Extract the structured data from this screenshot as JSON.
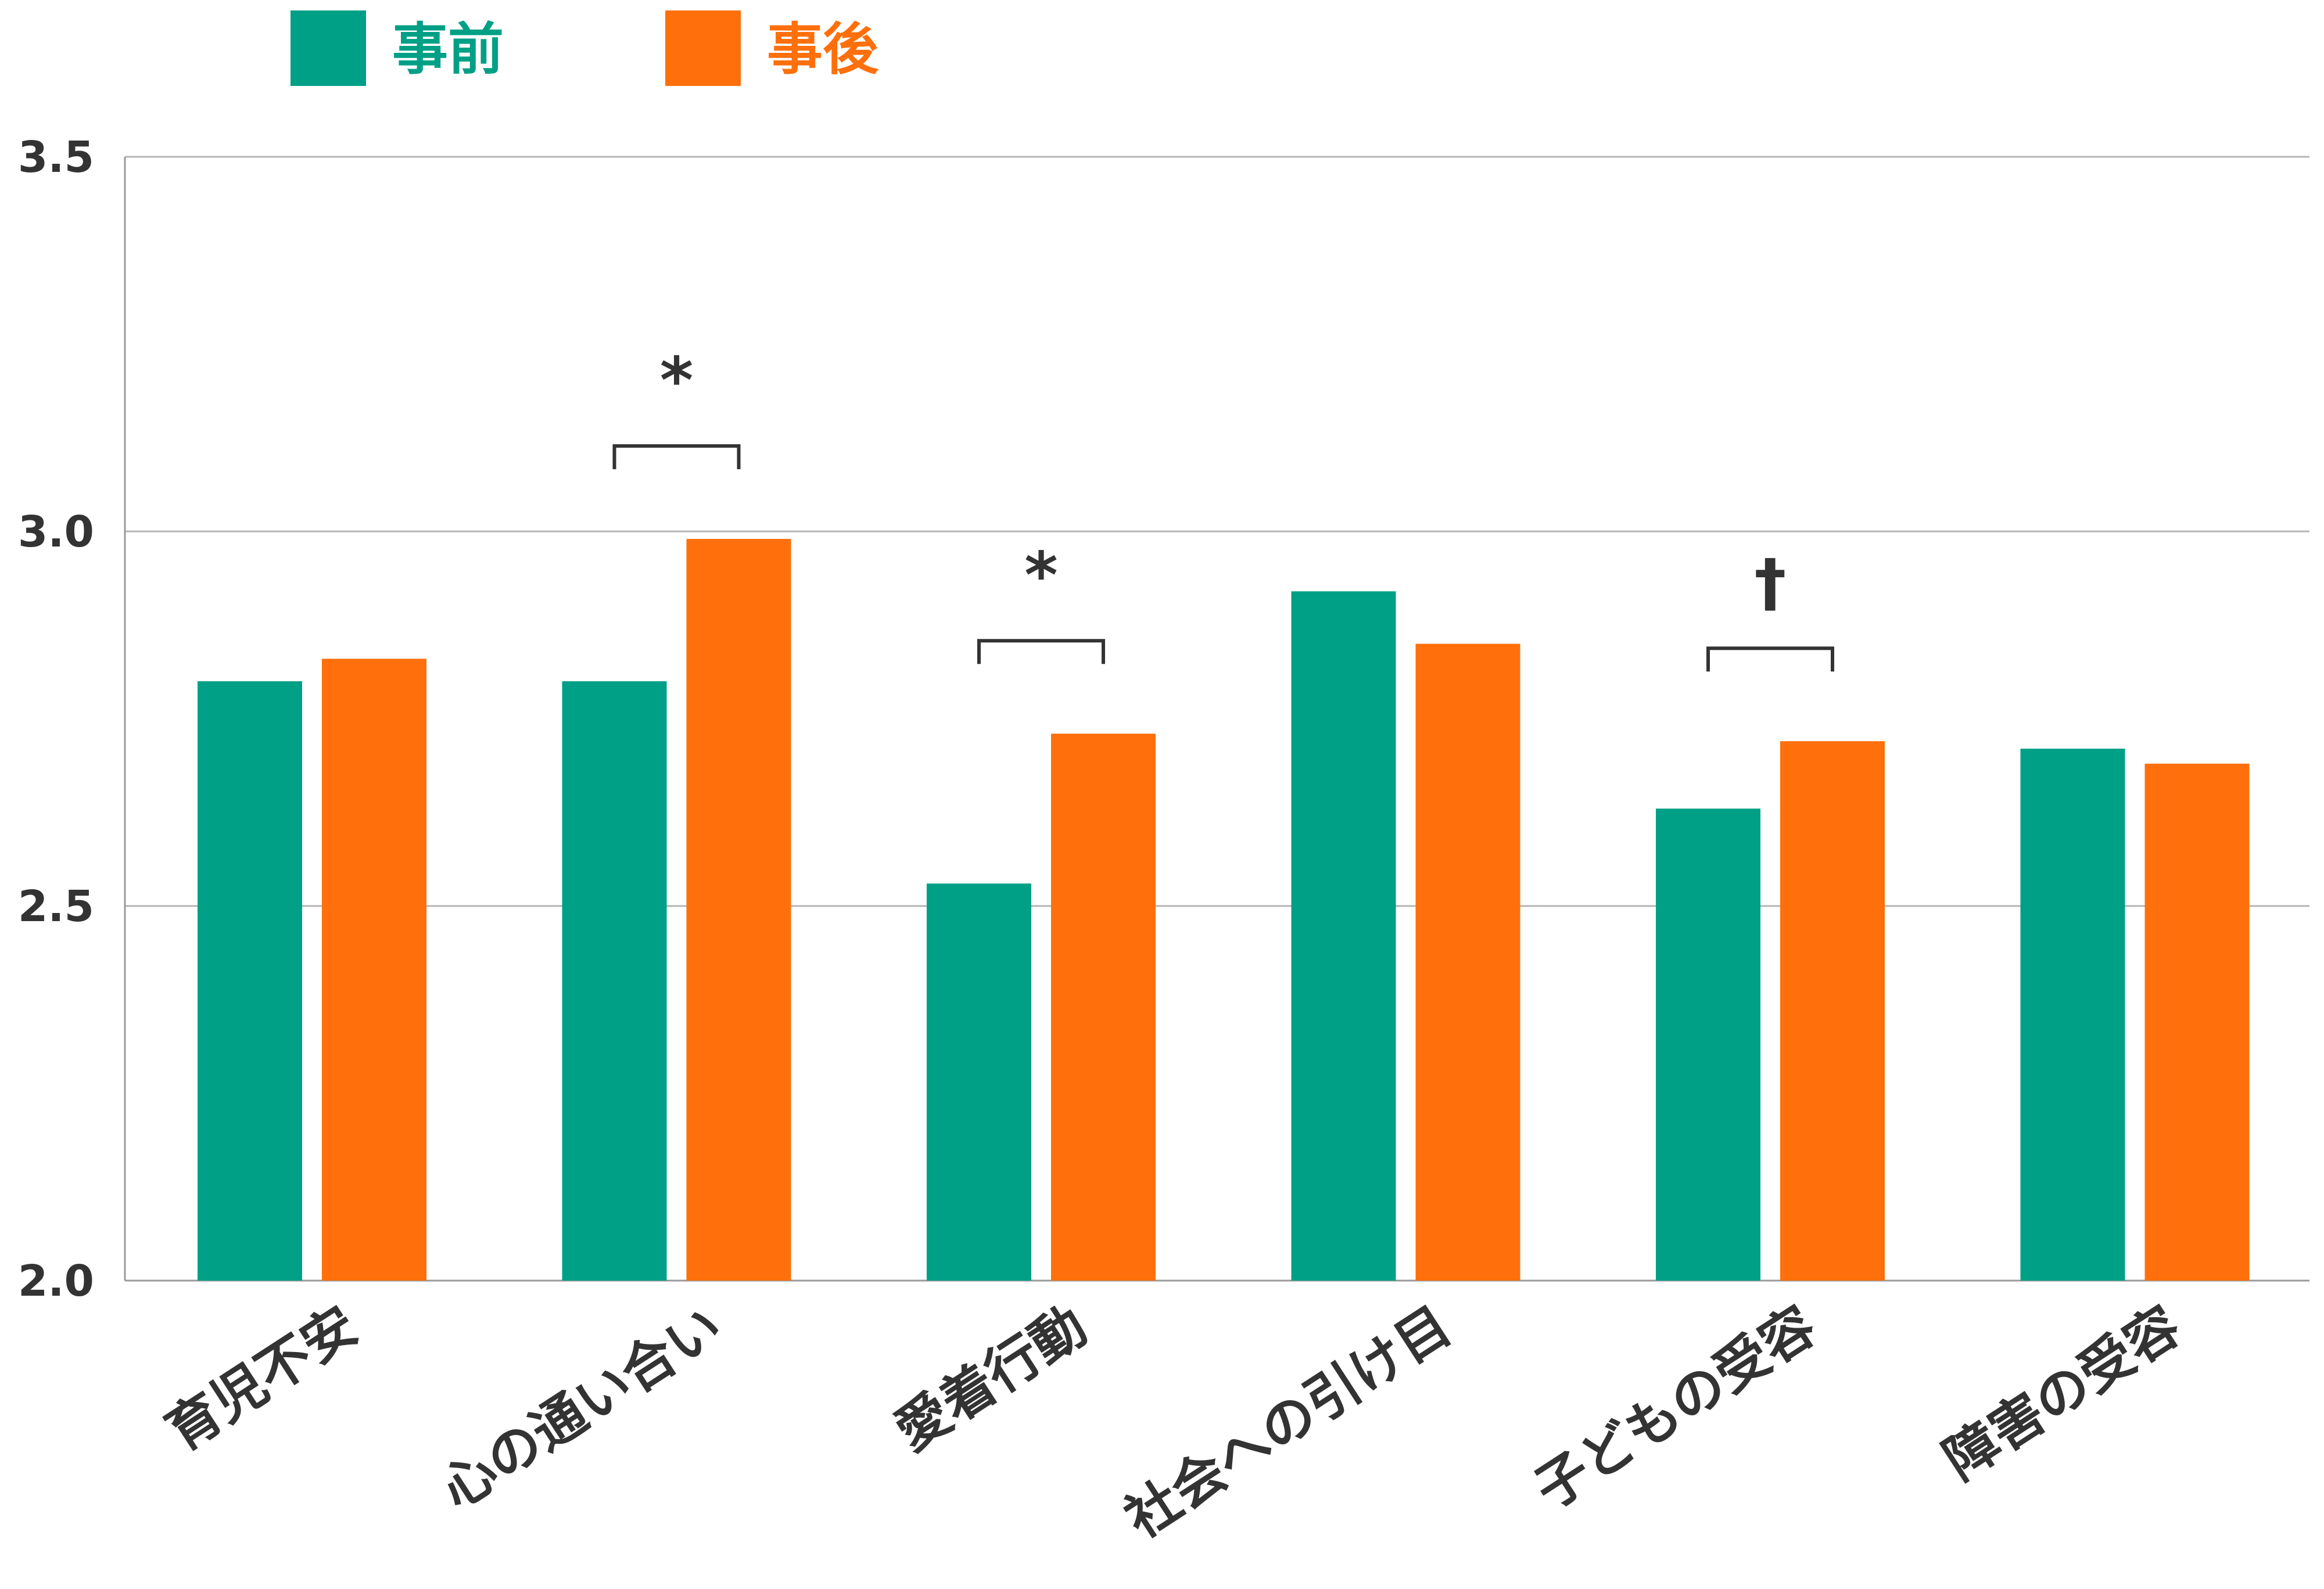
{
  "chart_data": {
    "type": "bar",
    "categories": [
      "育児不安",
      "心の通い合い",
      "愛着行動",
      "社会への引け目",
      "子どもの受容",
      "障害の受容"
    ],
    "series": [
      {
        "name": "事前",
        "color": "#00A086",
        "values": [
          2.8,
          2.8,
          2.53,
          2.92,
          2.63,
          2.71
        ]
      },
      {
        "name": "事後",
        "color": "#FF6F0B",
        "values": [
          2.83,
          2.99,
          2.73,
          2.85,
          2.72,
          2.69
        ]
      }
    ],
    "ylim": [
      2.0,
      3.5
    ],
    "yticks": [
      "2.0",
      "2.5",
      "3.0",
      "3.5"
    ],
    "grid": true,
    "legend_position": "top-left",
    "annotations": [
      {
        "category_index": 1,
        "mark": "*"
      },
      {
        "category_index": 2,
        "mark": "*"
      },
      {
        "category_index": 4,
        "mark": "†"
      }
    ]
  }
}
